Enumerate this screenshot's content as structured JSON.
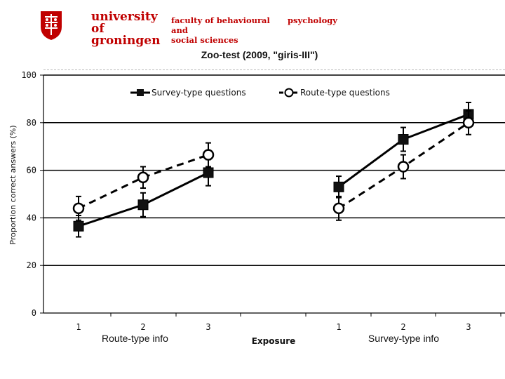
{
  "header": {
    "university_line1": "university of",
    "university_line2": "groningen",
    "faculty_line1": "faculty of behavioural and",
    "faculty_line2": "social sciences",
    "department": "psychology",
    "brand_color": "#c00000"
  },
  "chart_data": {
    "type": "line",
    "title": "Zoo-test (2009, \"giris-III\")",
    "ylabel": "Proportion correct answers (%)",
    "xlabel": "Exposure",
    "ylim": [
      0,
      100
    ],
    "yticks": [
      0,
      20,
      40,
      60,
      80,
      100
    ],
    "grid": true,
    "legend_position": "top",
    "groups": [
      {
        "label": "Route-type info",
        "x": [
          "1",
          "2",
          "3"
        ],
        "series": [
          {
            "name": "Survey-type questions",
            "values": [
              36.5,
              45.5,
              59
            ],
            "errors": [
              4.5,
              5,
              5.5
            ]
          },
          {
            "name": "Route-type questions",
            "values": [
              44,
              57,
              66.5
            ],
            "errors": [
              5,
              4.5,
              5
            ]
          }
        ]
      },
      {
        "label": "Survey-type info",
        "x": [
          "1",
          "2",
          "3"
        ],
        "series": [
          {
            "name": "Survey-type questions",
            "values": [
              53,
              73,
              83.5
            ],
            "errors": [
              4.5,
              5,
              5
            ]
          },
          {
            "name": "Route-type questions",
            "values": [
              44,
              61.5,
              80
            ],
            "errors": [
              5,
              5,
              5
            ]
          }
        ]
      }
    ],
    "legend": [
      "Survey-type questions",
      "Route-type questions"
    ]
  }
}
